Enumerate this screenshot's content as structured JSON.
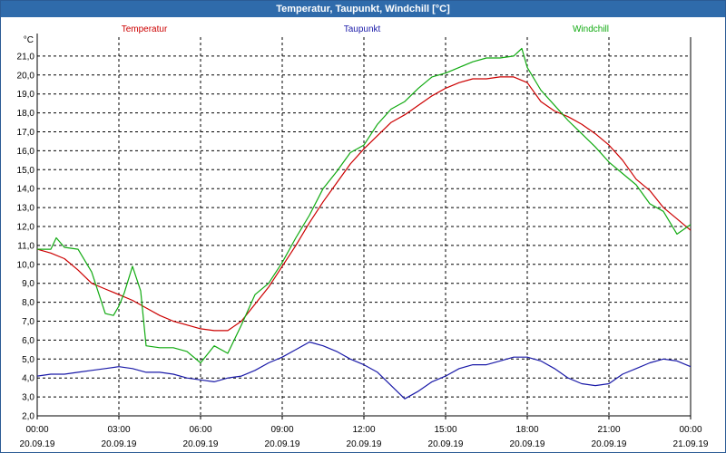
{
  "window": {
    "title": "Temperatur, Taupunkt, Windchill [°C]"
  },
  "chart_data": {
    "type": "line",
    "title": "Temperatur, Taupunkt, Windchill [°C]",
    "y_unit": "°C",
    "ylim": [
      2.0,
      22.0
    ],
    "y_ticks": [
      "2,0",
      "3,0",
      "4,0",
      "5,0",
      "6,0",
      "7,0",
      "8,0",
      "9,0",
      "10,0",
      "11,0",
      "12,0",
      "13,0",
      "14,0",
      "15,0",
      "16,0",
      "17,0",
      "18,0",
      "19,0",
      "20,0",
      "21,0"
    ],
    "xlim": [
      0,
      24
    ],
    "x_ticks": [
      {
        "x": 0,
        "time": "00:00",
        "date": "20.09.19"
      },
      {
        "x": 3,
        "time": "03:00",
        "date": "20.09.19"
      },
      {
        "x": 6,
        "time": "06:00",
        "date": "20.09.19"
      },
      {
        "x": 9,
        "time": "09:00",
        "date": "20.09.19"
      },
      {
        "x": 12,
        "time": "12:00",
        "date": "20.09.19"
      },
      {
        "x": 15,
        "time": "15:00",
        "date": "20.09.19"
      },
      {
        "x": 18,
        "time": "18:00",
        "date": "20.09.19"
      },
      {
        "x": 21,
        "time": "21:00",
        "date": "20.09.19"
      },
      {
        "x": 24,
        "time": "00:00",
        "date": "21.09.19"
      }
    ],
    "grid": true,
    "series": [
      {
        "name": "Temperatur",
        "color": "#cc0000",
        "x": [
          0,
          0.5,
          1,
          1.5,
          2,
          2.5,
          3,
          3.5,
          4,
          4.5,
          5,
          5.5,
          6,
          6.5,
          7,
          7.5,
          8,
          8.5,
          9,
          9.5,
          10,
          10.5,
          11,
          11.5,
          12,
          12.5,
          13,
          13.5,
          14,
          14.5,
          15,
          15.5,
          16,
          16.5,
          17,
          17.5,
          18,
          18.5,
          19,
          19.5,
          20,
          20.5,
          21,
          21.5,
          22,
          22.5,
          23,
          23.5,
          24
        ],
        "y": [
          10.8,
          10.6,
          10.3,
          9.7,
          9.0,
          8.7,
          8.4,
          8.1,
          7.7,
          7.3,
          7.0,
          6.8,
          6.6,
          6.5,
          6.5,
          7.0,
          7.9,
          8.8,
          9.9,
          11.0,
          12.2,
          13.3,
          14.3,
          15.3,
          16.1,
          16.8,
          17.5,
          17.9,
          18.4,
          18.9,
          19.3,
          19.6,
          19.8,
          19.8,
          19.9,
          19.9,
          19.6,
          18.6,
          18.1,
          17.8,
          17.4,
          16.9,
          16.3,
          15.5,
          14.5,
          13.9,
          13.0,
          12.4,
          11.8
        ]
      },
      {
        "name": "Taupunkt",
        "color": "#1a1aa8",
        "x": [
          0,
          0.5,
          1,
          1.5,
          2,
          2.5,
          3,
          3.5,
          4,
          4.5,
          5,
          5.5,
          6,
          6.5,
          7,
          7.5,
          8,
          8.5,
          9,
          9.5,
          10,
          10.5,
          11,
          11.5,
          12,
          12.5,
          13,
          13.5,
          14,
          14.5,
          15,
          15.5,
          16,
          16.5,
          17,
          17.5,
          18,
          18.5,
          19,
          19.5,
          20,
          20.5,
          21,
          21.5,
          22,
          22.5,
          23,
          23.5,
          24
        ],
        "y": [
          4.1,
          4.2,
          4.2,
          4.3,
          4.4,
          4.5,
          4.6,
          4.5,
          4.3,
          4.3,
          4.2,
          4.0,
          3.9,
          3.8,
          4.0,
          4.1,
          4.4,
          4.8,
          5.1,
          5.5,
          5.9,
          5.7,
          5.4,
          5.0,
          4.7,
          4.3,
          3.6,
          2.9,
          3.3,
          3.8,
          4.1,
          4.5,
          4.7,
          4.7,
          4.9,
          5.1,
          5.1,
          4.9,
          4.5,
          4.0,
          3.7,
          3.6,
          3.7,
          4.2,
          4.5,
          4.8,
          5.0,
          4.9,
          4.6
        ]
      },
      {
        "name": "Windchill",
        "color": "#11aa11",
        "x": [
          0,
          0.5,
          0.7,
          1,
          1.5,
          2,
          2.5,
          2.8,
          3,
          3.2,
          3.5,
          3.8,
          4,
          4.5,
          5,
          5.5,
          6,
          6.5,
          7,
          7.5,
          8,
          8.5,
          9,
          9.5,
          10,
          10.5,
          11,
          11.5,
          12,
          12.5,
          13,
          13.5,
          14,
          14.5,
          15,
          15.5,
          16,
          16.5,
          17,
          17.5,
          17.8,
          18,
          18.5,
          19,
          19.5,
          20,
          20.5,
          21,
          21.5,
          22,
          22.5,
          23,
          23.5,
          24
        ],
        "y": [
          10.8,
          10.8,
          11.4,
          10.9,
          10.8,
          9.6,
          7.4,
          7.3,
          7.8,
          8.5,
          9.9,
          8.6,
          5.7,
          5.6,
          5.6,
          5.4,
          4.8,
          5.7,
          5.3,
          6.8,
          8.4,
          9.0,
          10.1,
          11.4,
          12.6,
          14.0,
          14.9,
          15.9,
          16.3,
          17.4,
          18.2,
          18.6,
          19.3,
          19.9,
          20.1,
          20.4,
          20.7,
          20.9,
          20.9,
          21.0,
          21.4,
          20.4,
          19.2,
          18.4,
          17.6,
          16.9,
          16.2,
          15.4,
          14.8,
          14.2,
          13.2,
          12.8,
          11.6,
          12.1
        ]
      }
    ]
  }
}
